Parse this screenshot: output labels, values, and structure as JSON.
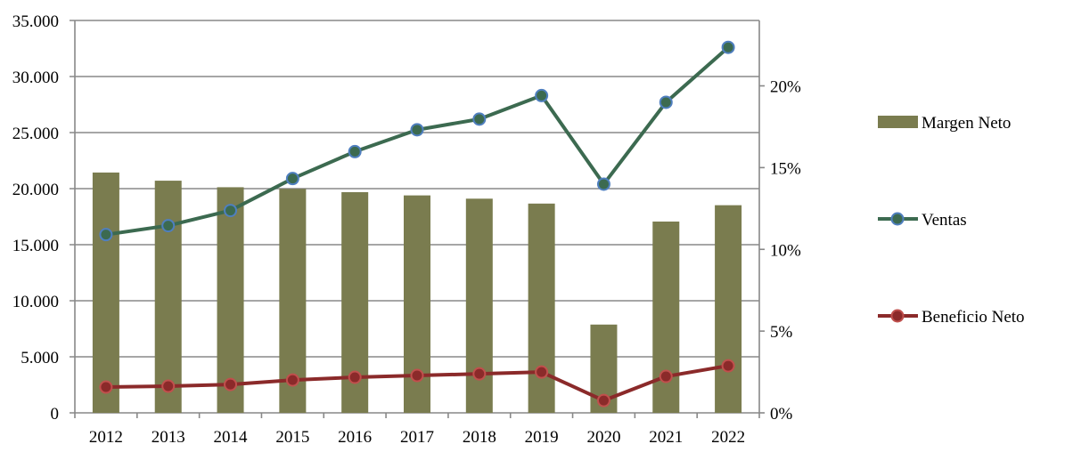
{
  "chart_data": {
    "type": "bar+line",
    "categories": [
      "2012",
      "2013",
      "2014",
      "2015",
      "2016",
      "2017",
      "2018",
      "2019",
      "2020",
      "2021",
      "2022"
    ],
    "left_axis": {
      "range": [
        0,
        35000
      ],
      "ticks": [
        "0",
        "5.000",
        "10.000",
        "15.000",
        "20.000",
        "25.000",
        "30.000",
        "35.000"
      ],
      "tick_values": [
        0,
        5000,
        10000,
        15000,
        20000,
        25000,
        30000,
        35000
      ]
    },
    "right_axis": {
      "range": [
        0,
        24
      ],
      "ticks": [
        "0%",
        "5%",
        "10%",
        "15%",
        "20%"
      ],
      "tick_values": [
        0,
        5,
        10,
        15,
        20
      ]
    },
    "grid": true,
    "legend_position": "right",
    "series": [
      {
        "name": "Margen Neto",
        "type": "bar",
        "axis": "right",
        "unit": "%",
        "color": "#7a7c4f",
        "values": [
          14.7,
          14.2,
          13.8,
          13.7,
          13.5,
          13.3,
          13.1,
          12.8,
          5.4,
          11.7,
          12.7
        ]
      },
      {
        "name": "Ventas",
        "type": "line",
        "axis": "left",
        "color": "#3c6a50",
        "marker_edge": "#4f7fbf",
        "values": [
          15900,
          16700,
          18050,
          20900,
          23300,
          25250,
          26200,
          28300,
          20400,
          27700,
          32600
        ]
      },
      {
        "name": "Beneficio Neto",
        "type": "line",
        "axis": "left",
        "color": "#8b2a2a",
        "marker_edge": "#c0504d",
        "values": [
          2300,
          2380,
          2530,
          2930,
          3170,
          3330,
          3480,
          3640,
          1100,
          3250,
          4200
        ]
      }
    ]
  }
}
